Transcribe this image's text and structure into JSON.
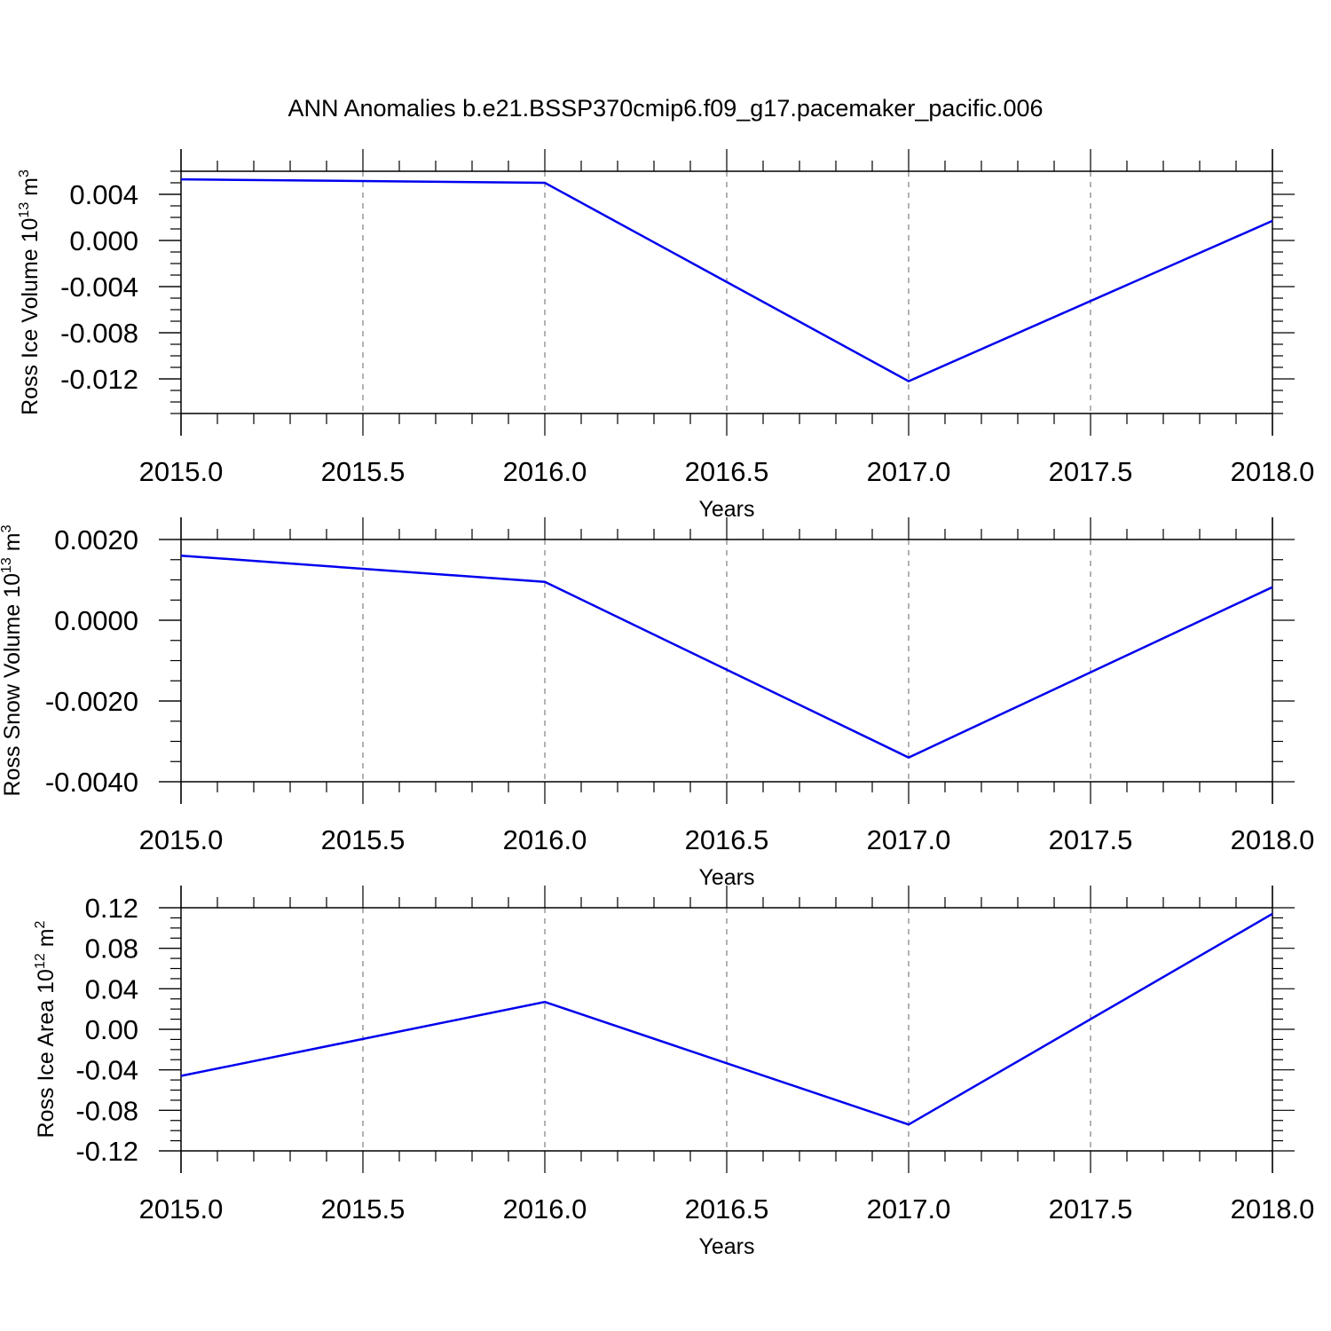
{
  "title": "ANN Anomalies b.e21.BSSP370cmip6.f09_g17.pacemaker_pacific.006",
  "colors": {
    "series": "#0000ee",
    "axis": "#000000",
    "grid": "#999999"
  },
  "chart_data": [
    {
      "type": "line",
      "ylabel_main": "Ross Ice Volume 10",
      "ylabel_sup": "13",
      "ylabel_unit": " m",
      "ylabel_unit_sup": "3",
      "xlabel": "Years",
      "x": [
        2015,
        2016,
        2017,
        2018
      ],
      "y": [
        0.0053,
        0.005,
        -0.0122,
        0.0017
      ],
      "xlim": [
        2015,
        2018
      ],
      "ylim": [
        -0.015,
        0.006
      ],
      "xticks": [
        "2015.0",
        "2015.5",
        "2016.0",
        "2016.5",
        "2017.0",
        "2017.5",
        "2018.0"
      ],
      "yticks": [
        "0.004",
        "0.000",
        "-0.004",
        "-0.008",
        "-0.012"
      ],
      "grid": "x-dashed"
    },
    {
      "type": "line",
      "ylabel_main": "Ross Snow Volume 10",
      "ylabel_sup": "13",
      "ylabel_unit": " m",
      "ylabel_unit_sup": "3",
      "xlabel": "Years",
      "x": [
        2015,
        2016,
        2017,
        2018
      ],
      "y": [
        0.0016,
        0.00095,
        -0.0034,
        0.00082
      ],
      "xlim": [
        2015,
        2018
      ],
      "ylim": [
        -0.004,
        0.002
      ],
      "xticks": [
        "2015.0",
        "2015.5",
        "2016.0",
        "2016.5",
        "2017.0",
        "2017.5",
        "2018.0"
      ],
      "yticks": [
        "0.0020",
        "0.0000",
        "-0.0020",
        "-0.0040"
      ],
      "grid": "x-dashed"
    },
    {
      "type": "line",
      "ylabel_main": "Ross Ice Area 10",
      "ylabel_sup": "12",
      "ylabel_unit": " m",
      "ylabel_unit_sup": "2",
      "xlabel": "Years",
      "x": [
        2015,
        2016,
        2017,
        2018
      ],
      "y": [
        -0.046,
        0.027,
        -0.094,
        0.114
      ],
      "xlim": [
        2015,
        2018
      ],
      "ylim": [
        -0.12,
        0.12
      ],
      "xticks": [
        "2015.0",
        "2015.5",
        "2016.0",
        "2016.5",
        "2017.0",
        "2017.5",
        "2018.0"
      ],
      "yticks": [
        "0.12",
        "0.08",
        "0.04",
        "0.00",
        "-0.04",
        "-0.08",
        "-0.12"
      ],
      "grid": "x-dashed"
    }
  ]
}
